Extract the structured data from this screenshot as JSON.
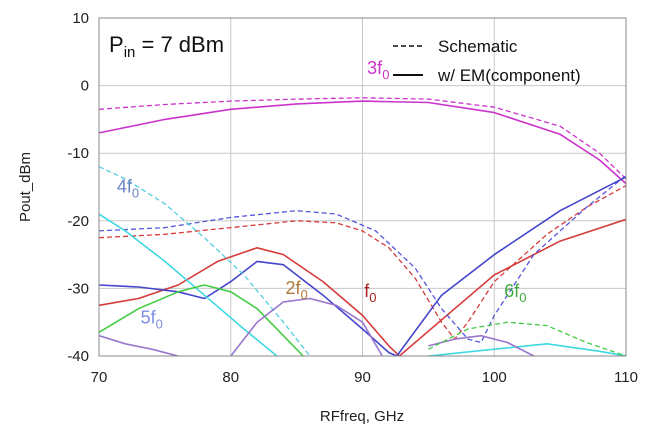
{
  "chart_data": {
    "type": "line",
    "xlabel": "RFfreq, GHz",
    "ylabel": "Pout_dBm",
    "xlim": [
      70,
      110
    ],
    "ylim": [
      -40,
      10
    ],
    "xticks": [
      "70",
      "80",
      "90",
      "100",
      "110"
    ],
    "yticks": [
      "10",
      "0",
      "-10",
      "-20",
      "-30",
      "-40"
    ],
    "grid": true,
    "condition": {
      "p": "P",
      "sub": "in",
      "rest": " = 7 dBm"
    },
    "legend": {
      "placement": "top-right",
      "entries": [
        {
          "label": "Schematic",
          "style": "dashed"
        },
        {
          "label": "w/ EM(component)",
          "style": "solid"
        }
      ]
    },
    "series": [
      {
        "harmonic": "3",
        "color": "#cc33cc",
        "style": "dashed",
        "points": [
          [
            70,
            -3.5
          ],
          [
            75,
            -2.8
          ],
          [
            80,
            -2.3
          ],
          [
            85,
            -2.0
          ],
          [
            90,
            -1.8
          ],
          [
            95,
            -2.0
          ],
          [
            100,
            -3.2
          ],
          [
            105,
            -6.0
          ],
          [
            108,
            -10.0
          ],
          [
            110,
            -13.8
          ]
        ]
      },
      {
        "harmonic": "3",
        "color": "#cc33cc",
        "style": "solid",
        "points": [
          [
            70,
            -7.0
          ],
          [
            75,
            -5.0
          ],
          [
            80,
            -3.5
          ],
          [
            85,
            -2.7
          ],
          [
            90,
            -2.3
          ],
          [
            95,
            -2.5
          ],
          [
            100,
            -4.0
          ],
          [
            105,
            -7.2
          ],
          [
            108,
            -11.0
          ],
          [
            110,
            -14.5
          ]
        ]
      },
      {
        "harmonic": "",
        "color": "#d63b3b",
        "style": "dashed",
        "points": [
          [
            70,
            -22.5
          ],
          [
            75,
            -22.0
          ],
          [
            80,
            -21.0
          ],
          [
            85,
            -20.0
          ],
          [
            88,
            -20.3
          ],
          [
            90,
            -21.5
          ],
          [
            92,
            -24.0
          ],
          [
            94,
            -28.5
          ],
          [
            96,
            -35.0
          ],
          [
            97,
            -37.5
          ],
          [
            98,
            -35.0
          ],
          [
            100,
            -29.0
          ],
          [
            104,
            -22.0
          ],
          [
            107,
            -18.0
          ],
          [
            110,
            -14.8
          ]
        ]
      },
      {
        "harmonic": "",
        "color": "#d63b3b",
        "style": "solid",
        "points": [
          [
            70,
            -32.5
          ],
          [
            73,
            -31.5
          ],
          [
            76,
            -29.5
          ],
          [
            79,
            -26.0
          ],
          [
            82,
            -24.0
          ],
          [
            84,
            -25.0
          ],
          [
            87,
            -29.0
          ],
          [
            90,
            -34.0
          ],
          [
            92,
            -38.5
          ],
          [
            92.8,
            -40.0
          ],
          [
            97,
            -33.0
          ],
          [
            100,
            -28.0
          ],
          [
            105,
            -23.0
          ],
          [
            110,
            -19.8
          ]
        ]
      },
      {
        "harmonic": "",
        "color": "#5555dd",
        "style": "dashed",
        "points": [
          [
            70,
            -21.5
          ],
          [
            75,
            -21.0
          ],
          [
            80,
            -19.5
          ],
          [
            85,
            -18.5
          ],
          [
            88,
            -19.0
          ],
          [
            91,
            -21.5
          ],
          [
            94,
            -27.0
          ],
          [
            96,
            -33.0
          ],
          [
            98,
            -37.5
          ],
          [
            99,
            -38.0
          ],
          [
            100,
            -34.0
          ],
          [
            103,
            -25.0
          ],
          [
            107,
            -18.0
          ],
          [
            110,
            -13.3
          ]
        ]
      },
      {
        "harmonic": "",
        "color": "#4444cc",
        "style": "solid",
        "points": [
          [
            70,
            -29.5
          ],
          [
            73,
            -29.8
          ],
          [
            76,
            -30.5
          ],
          [
            78,
            -31.5
          ],
          [
            80,
            -29.0
          ],
          [
            82,
            -26.0
          ],
          [
            84,
            -26.5
          ],
          [
            87,
            -31.0
          ],
          [
            90,
            -36.0
          ],
          [
            92,
            -39.5
          ],
          [
            92.6,
            -40.0
          ],
          [
            96,
            -31.0
          ],
          [
            100,
            -25.0
          ],
          [
            105,
            -18.5
          ],
          [
            110,
            -13.5
          ]
        ]
      },
      {
        "harmonic": "4",
        "color": "#4fcfe0",
        "style": "dashed",
        "points": [
          [
            70,
            -12.0
          ],
          [
            72,
            -13.8
          ],
          [
            75,
            -17.5
          ],
          [
            78,
            -22.5
          ],
          [
            81,
            -28.0
          ],
          [
            84,
            -35.0
          ],
          [
            86,
            -40.0
          ]
        ]
      },
      {
        "harmonic": "4",
        "color": "#40d8e0",
        "style": "solid",
        "points": [
          [
            70,
            -19.0
          ],
          [
            72,
            -21.5
          ],
          [
            75,
            -26.0
          ],
          [
            78,
            -31.0
          ],
          [
            81,
            -36.0
          ],
          [
            83.5,
            -40.0
          ]
        ]
      },
      {
        "harmonic": "4",
        "color": "#40d8e0",
        "style": "solid",
        "points": [
          [
            95,
            -40.0
          ],
          [
            100,
            -39.0
          ],
          [
            104,
            -38.2
          ],
          [
            108,
            -39.3
          ],
          [
            110,
            -40.0
          ]
        ]
      },
      {
        "harmonic": "",
        "color": "#44cc44",
        "style": "solid",
        "points": [
          [
            70,
            -36.5
          ],
          [
            73,
            -33.0
          ],
          [
            76,
            -30.5
          ],
          [
            78,
            -29.5
          ],
          [
            80,
            -30.5
          ],
          [
            82,
            -33.0
          ],
          [
            84,
            -37.0
          ],
          [
            85.5,
            -40.0
          ]
        ]
      },
      {
        "harmonic": "5",
        "color": "#9977cc",
        "style": "solid",
        "points": [
          [
            70,
            -37.0
          ],
          [
            72,
            -38.2
          ],
          [
            74,
            -39.0
          ],
          [
            76,
            -40.0
          ]
        ]
      },
      {
        "harmonic": "2",
        "color": "#9977cc",
        "style": "solid",
        "points": [
          [
            80,
            -40.0
          ],
          [
            82,
            -35.0
          ],
          [
            84,
            -32.0
          ],
          [
            86,
            -31.5
          ],
          [
            88,
            -32.5
          ],
          [
            90,
            -35.0
          ],
          [
            91.5,
            -40.0
          ]
        ]
      },
      {
        "harmonic": "2",
        "color": "#9977cc",
        "style": "solid",
        "points": [
          [
            95,
            -38.5
          ],
          [
            97,
            -37.5
          ],
          [
            99,
            -37.0
          ],
          [
            101,
            -38.0
          ],
          [
            103,
            -40.0
          ]
        ]
      },
      {
        "harmonic": "6",
        "color": "#44cc44",
        "style": "dashed",
        "points": [
          [
            95,
            -39.0
          ],
          [
            98,
            -36.0
          ],
          [
            101,
            -35.0
          ],
          [
            104,
            -35.5
          ],
          [
            107,
            -38.0
          ],
          [
            110,
            -40.0
          ]
        ]
      }
    ],
    "annotations": [
      {
        "base": "3f",
        "sub": "0",
        "x": 91.2,
        "y": 1.7,
        "color": "#cc33cc"
      },
      {
        "base": "4f",
        "sub": "0",
        "x": 72.2,
        "y": -15.8,
        "color": "#6a85c4"
      },
      {
        "base": "2f",
        "sub": "0",
        "x": 85.0,
        "y": -30.8,
        "color": "#b07a3a"
      },
      {
        "base": "f",
        "sub": "0",
        "x": 90.6,
        "y": -31.3,
        "color": "#b02020"
      },
      {
        "base": "5f",
        "sub": "0",
        "x": 74.0,
        "y": -35.2,
        "color": "#7f8ee0"
      },
      {
        "base": "6f",
        "sub": "0",
        "x": 101.6,
        "y": -31.3,
        "color": "#44aa44"
      }
    ]
  }
}
